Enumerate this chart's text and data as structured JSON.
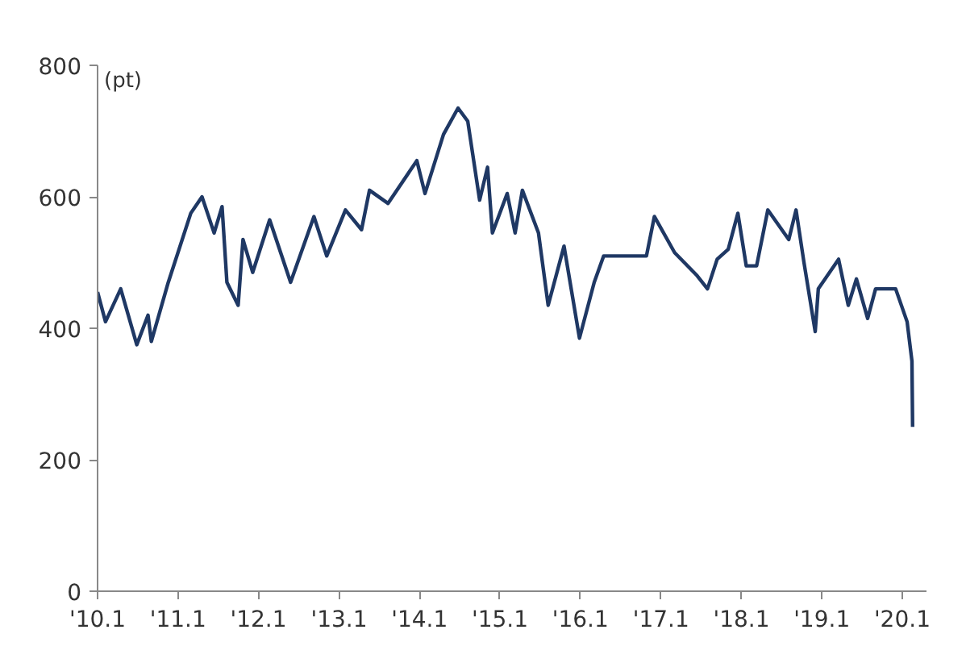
{
  "chart_data": {
    "type": "line",
    "ylabel": "(pt)",
    "x": [
      "2010-01-01",
      "2010-02-06",
      "2010-04-16",
      "2010-06-28",
      "2010-08-18",
      "2010-09-02",
      "2010-11-18",
      "2011-02-28",
      "2011-04-20",
      "2011-06-14",
      "2011-07-20",
      "2011-08-11",
      "2011-10-01",
      "2011-10-23",
      "2011-12-06",
      "2012-02-21",
      "2012-05-26",
      "2012-09-09",
      "2012-11-06",
      "2013-01-30",
      "2013-04-13",
      "2013-05-19",
      "2013-08-11",
      "2013-12-20",
      "2014-01-26",
      "2014-04-20",
      "2014-06-25",
      "2014-08-08",
      "2014-10-01",
      "2014-11-06",
      "2014-11-28",
      "2015-02-03",
      "2015-03-11",
      "2015-04-13",
      "2015-06-25",
      "2015-08-08",
      "2015-10-19",
      "2015-12-28",
      "2016-03-04",
      "2016-04-16",
      "2016-07-09",
      "2016-10-27",
      "2016-12-02",
      "2017-03-04",
      "2017-06-14",
      "2017-07-31",
      "2017-09-13",
      "2017-11-02",
      "2017-12-16",
      "2018-01-23",
      "2018-03-11",
      "2018-05-01",
      "2018-08-04",
      "2018-09-06",
      "2018-10-12",
      "2018-12-02",
      "2018-12-16",
      "2019-03-18",
      "2019-05-01",
      "2019-06-07",
      "2019-07-28",
      "2019-09-02",
      "2019-12-02",
      "2020-01-23",
      "2020-02-14",
      "2020-02-17"
    ],
    "series": [
      {
        "color": "#1f3864",
        "values": [
          455,
          410,
          460,
          375,
          420,
          380,
          470,
          575,
          600,
          545,
          585,
          470,
          435,
          535,
          485,
          565,
          470,
          570,
          510,
          580,
          550,
          610,
          590,
          655,
          605,
          695,
          735,
          715,
          595,
          645,
          545,
          605,
          545,
          610,
          545,
          435,
          525,
          385,
          470,
          510,
          510,
          510,
          570,
          515,
          480,
          460,
          505,
          520,
          575,
          495,
          495,
          580,
          535,
          580,
          500,
          395,
          460,
          505,
          435,
          475,
          415,
          460,
          460,
          410,
          350,
          250
        ]
      }
    ],
    "xlim": [
      "2010-01-01",
      "2020-04-20"
    ],
    "ylim": [
      0,
      800
    ],
    "xticks": [
      {
        "value": "2010-01",
        "label": "'10.1"
      },
      {
        "value": "2011-01",
        "label": "'11.1"
      },
      {
        "value": "2012-01",
        "label": "'12.1"
      },
      {
        "value": "2013-01",
        "label": "'13.1"
      },
      {
        "value": "2014-01",
        "label": "'14.1"
      },
      {
        "value": "2015-01",
        "label": "'15.1"
      },
      {
        "value": "2016-01",
        "label": "'16.1"
      },
      {
        "value": "2017-01",
        "label": "'17.1"
      },
      {
        "value": "2018-01",
        "label": "'18.1"
      },
      {
        "value": "2019-01",
        "label": "'19.1"
      },
      {
        "value": "2020-01",
        "label": "'20.1"
      }
    ],
    "yticks": [
      0,
      200,
      400,
      600,
      800
    ],
    "grid": false
  }
}
